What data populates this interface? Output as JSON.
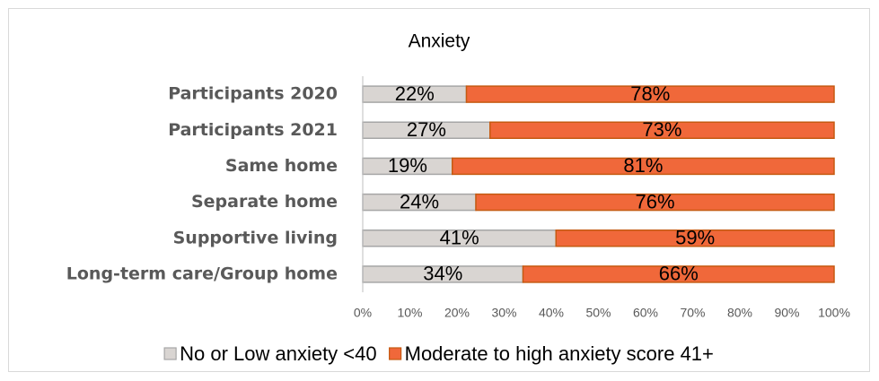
{
  "chart_data": {
    "type": "stacked-barh",
    "title": "Anxiety",
    "categories": [
      "Participants 2020",
      "Participants 2021",
      "Same home",
      "Separate home",
      "Supportive living",
      "Long-term care/Group home"
    ],
    "series": [
      {
        "name": "No or Low anxiety <40",
        "color": "#d9d5d2",
        "values": [
          22,
          27,
          19,
          24,
          41,
          34
        ],
        "value_labels": [
          "22%",
          "27%",
          "19%",
          "24%",
          "41%",
          "34%"
        ]
      },
      {
        "name": "Moderate to high anxiety score 41+",
        "color": "#f0683a",
        "values": [
          78,
          73,
          81,
          76,
          59,
          66
        ],
        "value_labels": [
          "78%",
          "73%",
          "81%",
          "76%",
          "59%",
          "66%"
        ]
      }
    ],
    "xlim": [
      0,
      100
    ],
    "xticks": [
      {
        "value": 0,
        "label": "0%"
      },
      {
        "value": 10,
        "label": "10%"
      },
      {
        "value": 20,
        "label": "20%"
      },
      {
        "value": 30,
        "label": "30%"
      },
      {
        "value": 40,
        "label": "40%"
      },
      {
        "value": 50,
        "label": "50%"
      },
      {
        "value": 60,
        "label": "60%"
      },
      {
        "value": 70,
        "label": "70%"
      },
      {
        "value": 80,
        "label": "80%"
      },
      {
        "value": 90,
        "label": "90%"
      },
      {
        "value": 100,
        "label": "100%"
      }
    ]
  }
}
